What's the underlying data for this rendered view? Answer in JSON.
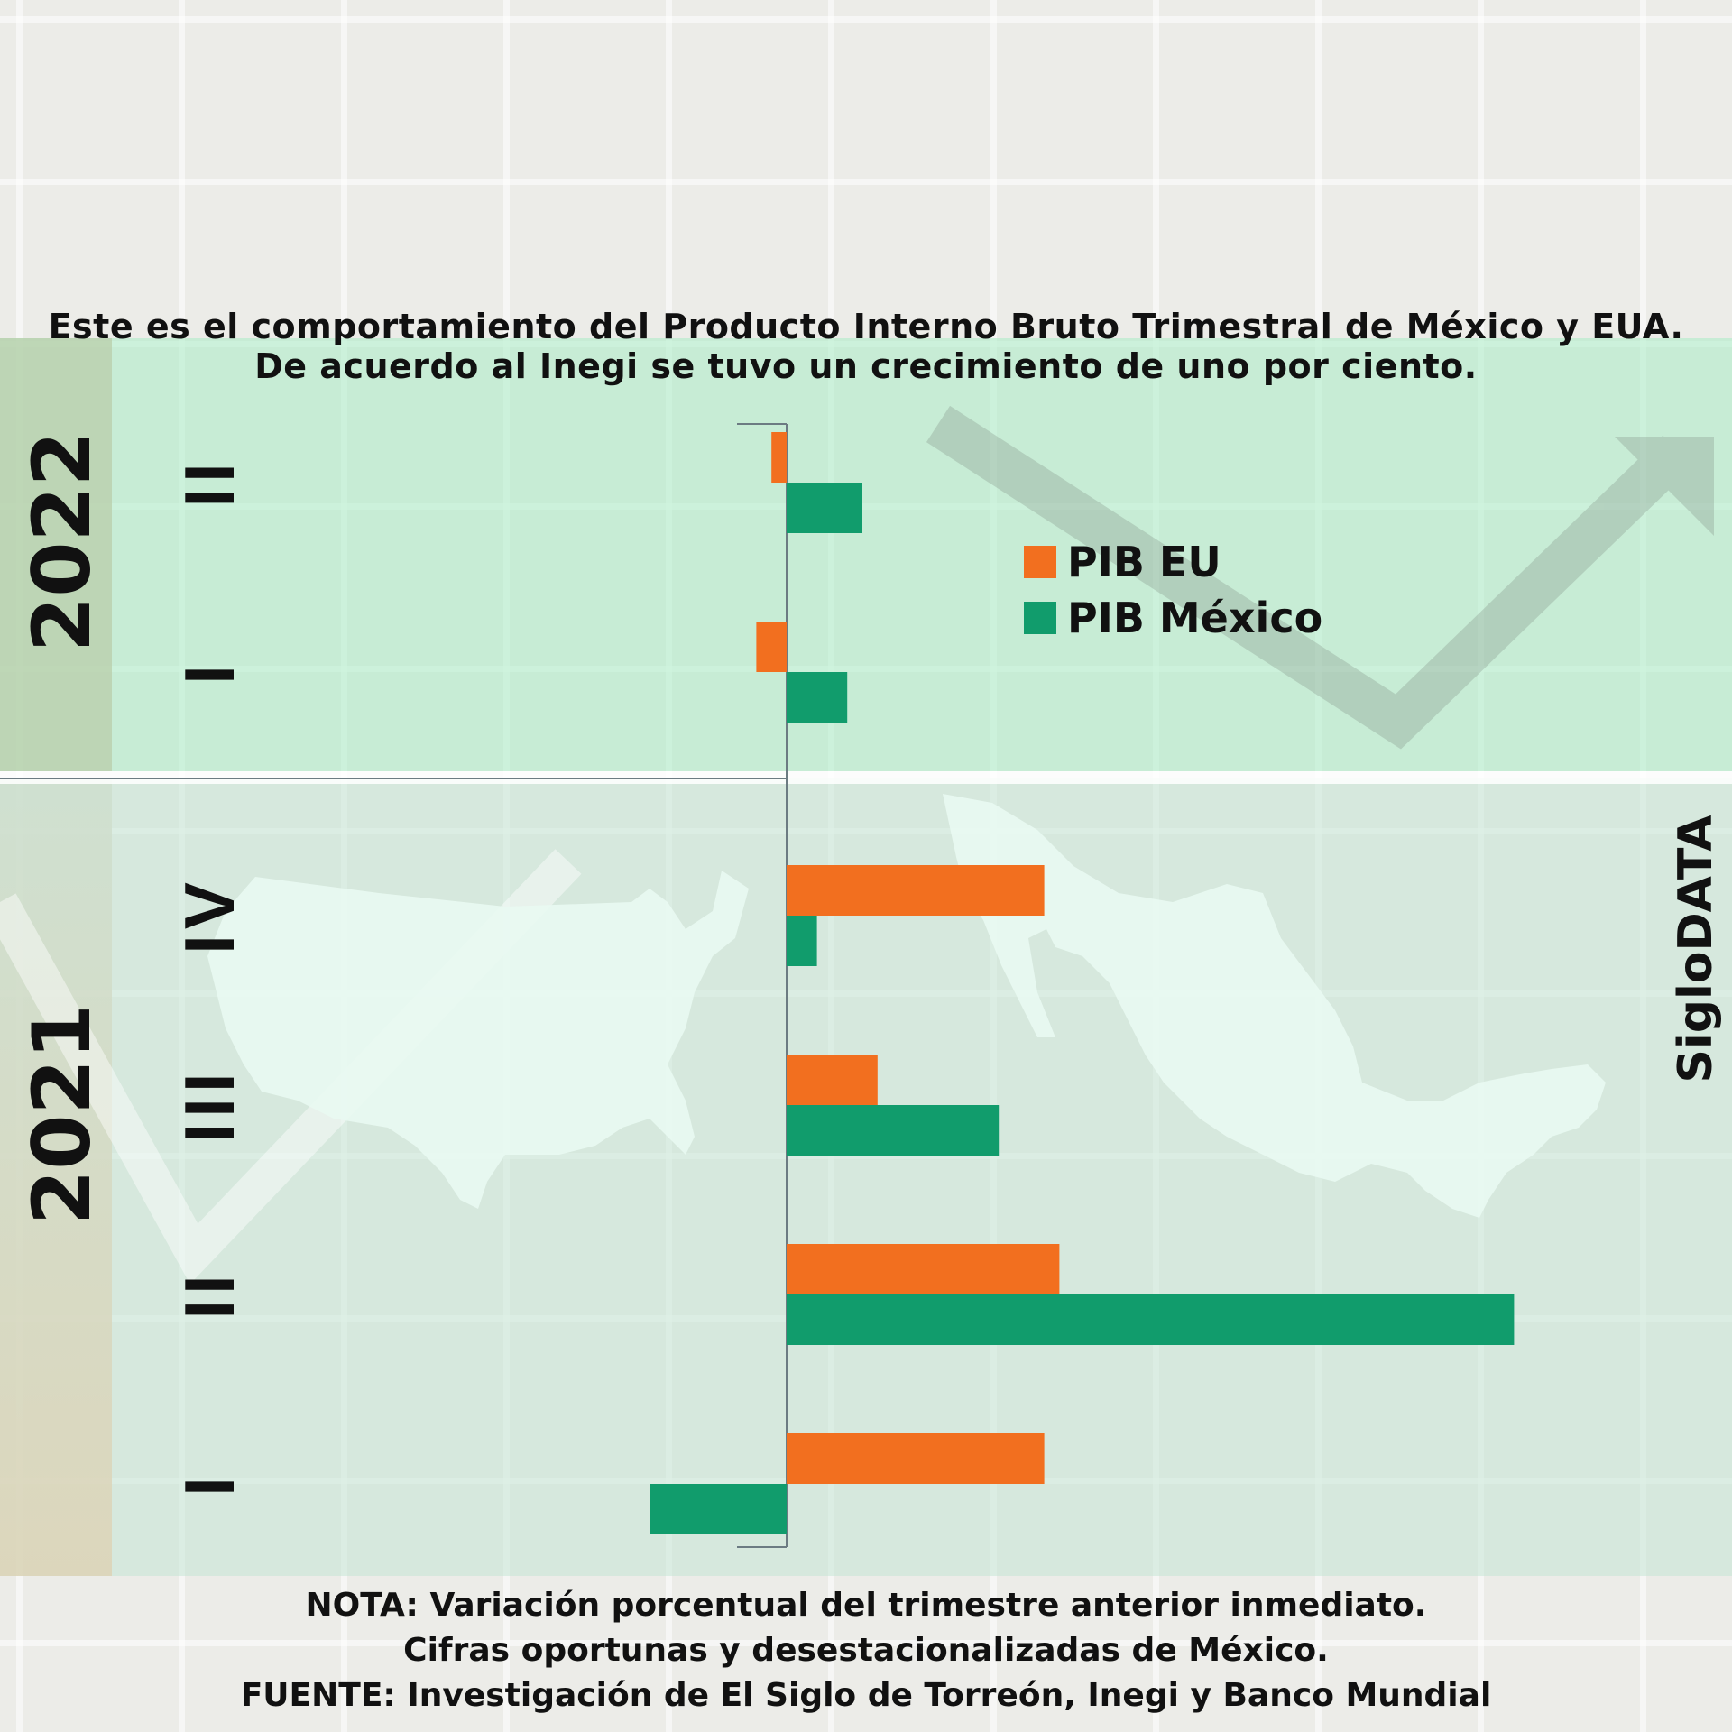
{
  "header": {
    "line1": "Este es el comportamiento del Producto Interno Bruto Trimestral de México y EUA.",
    "line2": "De acuerdo al Inegi se tuvo un crecimiento de uno por ciento."
  },
  "years": {
    "y2022": "2022",
    "y2021": "2021"
  },
  "brand": "SigloDATA",
  "notes": {
    "line1": "NOTA: Variación porcentual del trimestre anterior inmediato.",
    "line2": "Cifras oportunas y desestacionalizadas de México.",
    "line3": "FUENTE: Investigación de El Siglo de Torreón, Inegi y Banco Mundial"
  },
  "colors": {
    "eu": "#f26f1f",
    "mexico": "#119c6c",
    "band_top": "#b9ecd0",
    "band_bottom": "#cbe8d8",
    "axis": "#6c7b82"
  },
  "icons": [
    "us-map-silhouette",
    "mexico-map-silhouette",
    "growth-arrow"
  ],
  "chart_data": {
    "type": "bar",
    "orientation": "horizontal",
    "categories": [
      {
        "year": "2022",
        "quarter": "II"
      },
      {
        "year": "2022",
        "quarter": "I"
      },
      {
        "year": "2021",
        "quarter": "IV"
      },
      {
        "year": "2021",
        "quarter": "III"
      },
      {
        "year": "2021",
        "quarter": "II"
      },
      {
        "year": "2021",
        "quarter": "I"
      }
    ],
    "series": [
      {
        "name": "PIB EU",
        "color": "#f26f1f",
        "values": [
          -0.1,
          -0.2,
          1.7,
          0.6,
          1.8,
          1.7
        ]
      },
      {
        "name": "PIB México",
        "color": "#119c6c",
        "values": [
          0.5,
          0.4,
          0.2,
          1.4,
          4.8,
          -0.9
        ]
      }
    ],
    "xlim": [
      -1.0,
      5.0
    ],
    "legend_position": "top-right",
    "grid": false
  }
}
